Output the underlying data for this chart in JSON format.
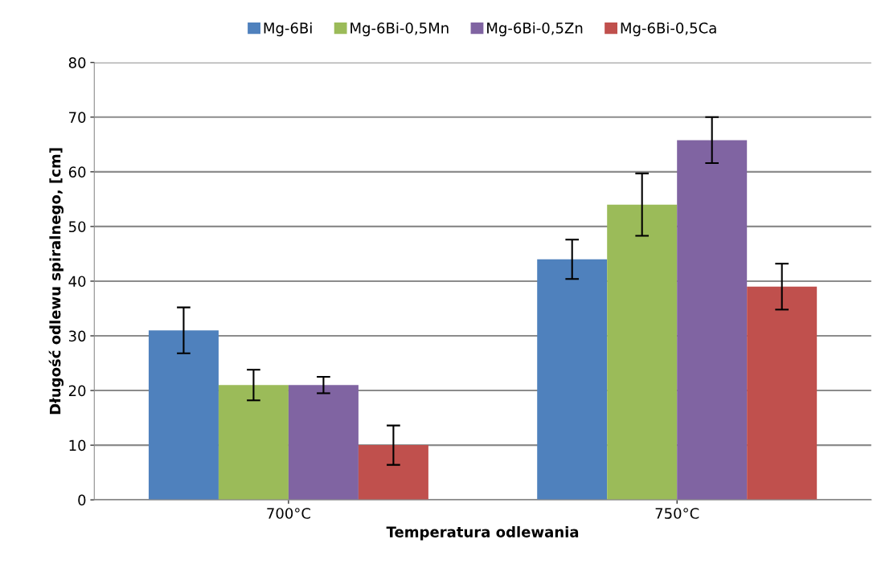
{
  "chart_data": {
    "type": "bar",
    "xlabel": "Temperatura odlewania",
    "ylabel": "Długość odlewu spiralnego, [cm]",
    "categories": [
      "700°C",
      "750°C"
    ],
    "series": [
      {
        "name": "Mg-6Bi",
        "color": "#4f81bd",
        "values": [
          31,
          44
        ],
        "errors": [
          4.2,
          3.6
        ]
      },
      {
        "name": "Mg-6Bi-0,5Mn",
        "color": "#9bbb59",
        "values": [
          21,
          54
        ],
        "errors": [
          2.8,
          5.7
        ]
      },
      {
        "name": "Mg-6Bi-0,5Zn",
        "color": "#8064a2",
        "values": [
          21,
          65.8
        ],
        "errors": [
          1.5,
          4.2
        ]
      },
      {
        "name": "Mg-6Bi-0,5Ca",
        "color": "#c0504d",
        "values": [
          10,
          39
        ],
        "errors": [
          3.6,
          4.2
        ]
      }
    ],
    "ylim": [
      0,
      80
    ],
    "yticks": [
      0,
      10,
      20,
      30,
      40,
      50,
      60,
      70,
      80
    ],
    "grid": "y",
    "legend": "top"
  }
}
